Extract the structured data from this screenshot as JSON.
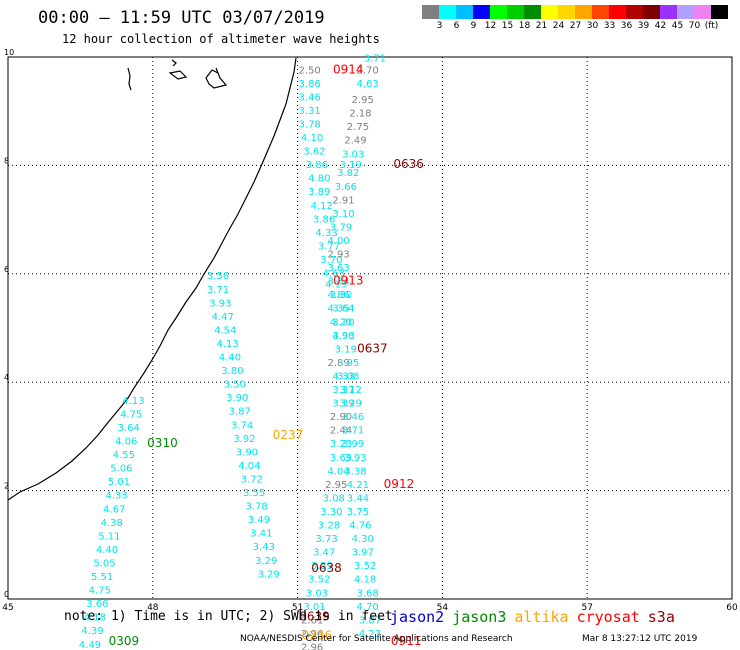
{
  "header": {
    "title": "00:00 – 11:59 UTC 03/07/2019",
    "subtitle": "12 hour collection of altimeter wave heights"
  },
  "legend": {
    "colors": [
      "#7f7f7f",
      "#00ffff",
      "#00bfff",
      "#0000ff",
      "#00ff00",
      "#00cd00",
      "#008b00",
      "#ffff00",
      "#ffd700",
      "#ffa500",
      "#ff4500",
      "#ff0000",
      "#b20000",
      "#800000",
      "#9b30ff",
      "#b0a0ff",
      "#ee82ee",
      "#000000"
    ],
    "labels": [
      "3",
      "6",
      "9",
      "12",
      "15",
      "18",
      "21",
      "24",
      "27",
      "30",
      "33",
      "36",
      "39",
      "42",
      "45",
      "70",
      "(ft)"
    ]
  },
  "axes": {
    "x_ticks": [
      "45",
      "48",
      "51",
      "54",
      "57",
      "60"
    ],
    "y_ticks": [
      "0",
      "2",
      "4",
      "6",
      "8",
      "10"
    ]
  },
  "map_data": {
    "lon_range": [
      45,
      60
    ],
    "lat_range": [
      0,
      10
    ],
    "swh_labels": [
      {
        "lon": 52.6,
        "lat": 9.92,
        "v": "3.71",
        "c": "cyan"
      },
      {
        "lon": 51.25,
        "lat": 9.7,
        "v": "2.50",
        "c": "gray"
      },
      {
        "lon": 52.45,
        "lat": 9.7,
        "v": "2.70",
        "c": "gray"
      },
      {
        "lon": 51.25,
        "lat": 9.45,
        "v": "3.86",
        "c": "cyan"
      },
      {
        "lon": 52.45,
        "lat": 9.45,
        "v": "4.63",
        "c": "cyan"
      },
      {
        "lon": 51.25,
        "lat": 9.2,
        "v": "3.46",
        "c": "cyan"
      },
      {
        "lon": 52.35,
        "lat": 9.15,
        "v": "2.95",
        "c": "gray"
      },
      {
        "lon": 51.25,
        "lat": 8.95,
        "v": "3.31",
        "c": "cyan"
      },
      {
        "lon": 52.3,
        "lat": 8.9,
        "v": "2.18",
        "c": "gray"
      },
      {
        "lon": 51.25,
        "lat": 8.7,
        "v": "3.78",
        "c": "cyan"
      },
      {
        "lon": 52.25,
        "lat": 8.65,
        "v": "2.75",
        "c": "gray"
      },
      {
        "lon": 51.3,
        "lat": 8.45,
        "v": "4.10",
        "c": "cyan"
      },
      {
        "lon": 52.2,
        "lat": 8.4,
        "v": "2.49",
        "c": "gray"
      },
      {
        "lon": 51.35,
        "lat": 8.2,
        "v": "3.62",
        "c": "cyan"
      },
      {
        "lon": 52.15,
        "lat": 8.15,
        "v": "3.03",
        "c": "cyan"
      },
      {
        "lon": 51.4,
        "lat": 7.95,
        "v": "3.86",
        "c": "cyan"
      },
      {
        "lon": 52.1,
        "lat": 7.95,
        "v": "3.19",
        "c": "cyan"
      },
      {
        "lon": 51.45,
        "lat": 7.7,
        "v": "4.80",
        "c": "cyan"
      },
      {
        "lon": 52.05,
        "lat": 7.8,
        "v": "3.82",
        "c": "cyan"
      },
      {
        "lon": 51.45,
        "lat": 7.45,
        "v": "3.89",
        "c": "cyan"
      },
      {
        "lon": 52.0,
        "lat": 7.55,
        "v": "3.66",
        "c": "cyan"
      },
      {
        "lon": 51.5,
        "lat": 7.2,
        "v": "4.12",
        "c": "cyan"
      },
      {
        "lon": 51.95,
        "lat": 7.3,
        "v": "2.91",
        "c": "gray"
      },
      {
        "lon": 51.55,
        "lat": 6.95,
        "v": "3.86",
        "c": "cyan"
      },
      {
        "lon": 51.95,
        "lat": 7.05,
        "v": "3.10",
        "c": "cyan"
      },
      {
        "lon": 51.6,
        "lat": 6.7,
        "v": "4.33",
        "c": "cyan"
      },
      {
        "lon": 51.9,
        "lat": 6.8,
        "v": "3.79",
        "c": "cyan"
      },
      {
        "lon": 51.65,
        "lat": 6.45,
        "v": "3.77",
        "c": "cyan"
      },
      {
        "lon": 51.85,
        "lat": 6.55,
        "v": "4.00",
        "c": "cyan"
      },
      {
        "lon": 51.7,
        "lat": 6.2,
        "v": "3.70",
        "c": "cyan"
      },
      {
        "lon": 51.85,
        "lat": 6.3,
        "v": "2.93",
        "c": "gray"
      },
      {
        "lon": 51.75,
        "lat": 5.95,
        "v": "4.63",
        "c": "cyan"
      },
      {
        "lon": 51.85,
        "lat": 6.05,
        "v": "3.63",
        "c": "cyan"
      },
      {
        "lon": 51.8,
        "lat": 5.75,
        "v": "4.13",
        "c": "cyan"
      },
      {
        "lon": 51.85,
        "lat": 5.8,
        "v": "3.34",
        "c": "cyan"
      },
      {
        "lon": 51.85,
        "lat": 5.55,
        "v": "4.86",
        "c": "cyan"
      },
      {
        "lon": 51.9,
        "lat": 5.55,
        "v": "3.30",
        "c": "cyan"
      },
      {
        "lon": 51.85,
        "lat": 5.3,
        "v": "4.35",
        "c": "cyan"
      },
      {
        "lon": 51.95,
        "lat": 5.3,
        "v": "3.64",
        "c": "cyan"
      },
      {
        "lon": 51.9,
        "lat": 5.05,
        "v": "4.20",
        "c": "cyan"
      },
      {
        "lon": 51.95,
        "lat": 5.05,
        "v": "3.20",
        "c": "cyan"
      },
      {
        "lon": 51.95,
        "lat": 4.8,
        "v": "4.96",
        "c": "cyan"
      },
      {
        "lon": 51.95,
        "lat": 4.8,
        "v": "3.90",
        "c": "cyan"
      },
      {
        "lon": 52.0,
        "lat": 4.55,
        "v": "3.19",
        "c": "cyan"
      },
      {
        "lon": 51.85,
        "lat": 4.3,
        "v": "2.89",
        "c": "gray"
      },
      {
        "lon": 52.05,
        "lat": 4.3,
        "v": "3.95",
        "c": "cyan"
      },
      {
        "lon": 51.95,
        "lat": 4.05,
        "v": "4.33",
        "c": "cyan"
      },
      {
        "lon": 52.05,
        "lat": 4.05,
        "v": "3.08",
        "c": "cyan"
      },
      {
        "lon": 51.95,
        "lat": 3.8,
        "v": "3.37",
        "c": "cyan"
      },
      {
        "lon": 52.1,
        "lat": 3.8,
        "v": "3.12",
        "c": "cyan"
      },
      {
        "lon": 51.95,
        "lat": 3.55,
        "v": "3.39",
        "c": "cyan"
      },
      {
        "lon": 52.1,
        "lat": 3.55,
        "v": "3.29",
        "c": "cyan"
      },
      {
        "lon": 51.9,
        "lat": 3.3,
        "v": "2.90",
        "c": "gray"
      },
      {
        "lon": 52.15,
        "lat": 3.3,
        "v": "3.46",
        "c": "cyan"
      },
      {
        "lon": 51.9,
        "lat": 3.05,
        "v": "2.44",
        "c": "gray"
      },
      {
        "lon": 52.15,
        "lat": 3.05,
        "v": "3.71",
        "c": "cyan"
      },
      {
        "lon": 51.9,
        "lat": 2.8,
        "v": "3.23",
        "c": "cyan"
      },
      {
        "lon": 52.15,
        "lat": 2.8,
        "v": "3.99",
        "c": "cyan"
      },
      {
        "lon": 51.9,
        "lat": 2.55,
        "v": "3.69",
        "c": "cyan"
      },
      {
        "lon": 52.2,
        "lat": 2.55,
        "v": "3.93",
        "c": "cyan"
      },
      {
        "lon": 51.85,
        "lat": 2.3,
        "v": "4.04",
        "c": "cyan"
      },
      {
        "lon": 52.2,
        "lat": 2.3,
        "v": "3.38",
        "c": "cyan"
      },
      {
        "lon": 51.8,
        "lat": 2.05,
        "v": "2.95",
        "c": "gray"
      },
      {
        "lon": 52.25,
        "lat": 2.05,
        "v": "4.21",
        "c": "cyan"
      },
      {
        "lon": 51.75,
        "lat": 1.8,
        "v": "3.08",
        "c": "cyan"
      },
      {
        "lon": 52.25,
        "lat": 1.8,
        "v": "3.44",
        "c": "cyan"
      },
      {
        "lon": 51.7,
        "lat": 1.55,
        "v": "3.30",
        "c": "cyan"
      },
      {
        "lon": 52.25,
        "lat": 1.55,
        "v": "3.75",
        "c": "cyan"
      },
      {
        "lon": 51.65,
        "lat": 1.3,
        "v": "3.28",
        "c": "cyan"
      },
      {
        "lon": 52.3,
        "lat": 1.3,
        "v": "4.76",
        "c": "cyan"
      },
      {
        "lon": 51.6,
        "lat": 1.05,
        "v": "3.73",
        "c": "cyan"
      },
      {
        "lon": 52.35,
        "lat": 1.05,
        "v": "4.30",
        "c": "cyan"
      },
      {
        "lon": 51.55,
        "lat": 0.8,
        "v": "3.47",
        "c": "cyan"
      },
      {
        "lon": 52.35,
        "lat": 0.8,
        "v": "3.97",
        "c": "cyan"
      },
      {
        "lon": 51.5,
        "lat": 0.55,
        "v": "3.39",
        "c": "cyan"
      },
      {
        "lon": 52.4,
        "lat": 0.55,
        "v": "3.52",
        "c": "cyan"
      },
      {
        "lon": 51.45,
        "lat": 0.3,
        "v": "3.52",
        "c": "cyan"
      },
      {
        "lon": 52.4,
        "lat": 0.3,
        "v": "4.18",
        "c": "cyan"
      },
      {
        "lon": 51.4,
        "lat": 0.05,
        "v": "3.03",
        "c": "cyan"
      },
      {
        "lon": 52.45,
        "lat": 0.05,
        "v": "3.68",
        "c": "cyan"
      },
      {
        "lon": 51.35,
        "lat": -0.2,
        "v": "3.01",
        "c": "cyan"
      },
      {
        "lon": 52.45,
        "lat": -0.2,
        "v": "4.70",
        "c": "cyan"
      },
      {
        "lon": 51.3,
        "lat": -0.45,
        "v": "2.61",
        "c": "gray"
      },
      {
        "lon": 52.5,
        "lat": -0.45,
        "v": "3.87",
        "c": "cyan"
      },
      {
        "lon": 51.3,
        "lat": -0.7,
        "v": "2.96",
        "c": "gray"
      },
      {
        "lon": 52.5,
        "lat": -0.7,
        "v": "4.23",
        "c": "cyan"
      },
      {
        "lon": 51.3,
        "lat": -0.95,
        "v": "2.96",
        "c": "gray"
      },
      {
        "lon": 49.35,
        "lat": 5.9,
        "v": "3.56",
        "c": "cyan"
      },
      {
        "lon": 49.35,
        "lat": 5.65,
        "v": "3.71",
        "c": "cyan"
      },
      {
        "lon": 49.4,
        "lat": 5.4,
        "v": "3.93",
        "c": "cyan"
      },
      {
        "lon": 49.45,
        "lat": 5.15,
        "v": "4.47",
        "c": "cyan"
      },
      {
        "lon": 49.5,
        "lat": 4.9,
        "v": "4.54",
        "c": "cyan"
      },
      {
        "lon": 49.55,
        "lat": 4.65,
        "v": "4.13",
        "c": "cyan"
      },
      {
        "lon": 49.6,
        "lat": 4.4,
        "v": "4.40",
        "c": "cyan"
      },
      {
        "lon": 49.65,
        "lat": 4.15,
        "v": "3.80",
        "c": "cyan"
      },
      {
        "lon": 49.7,
        "lat": 3.9,
        "v": "3.50",
        "c": "cyan"
      },
      {
        "lon": 49.75,
        "lat": 3.65,
        "v": "3.90",
        "c": "cyan"
      },
      {
        "lon": 49.8,
        "lat": 3.4,
        "v": "3.87",
        "c": "cyan"
      },
      {
        "lon": 49.85,
        "lat": 3.15,
        "v": "3.74",
        "c": "cyan"
      },
      {
        "lon": 49.9,
        "lat": 2.9,
        "v": "3.92",
        "c": "cyan"
      },
      {
        "lon": 49.95,
        "lat": 2.65,
        "v": "3.90",
        "c": "cyan"
      },
      {
        "lon": 50.0,
        "lat": 2.4,
        "v": "4.04",
        "c": "cyan"
      },
      {
        "lon": 50.05,
        "lat": 2.15,
        "v": "3.72",
        "c": "cyan"
      },
      {
        "lon": 50.1,
        "lat": 1.9,
        "v": "3.55",
        "c": "cyan"
      },
      {
        "lon": 50.15,
        "lat": 1.65,
        "v": "3.78",
        "c": "cyan"
      },
      {
        "lon": 50.2,
        "lat": 1.4,
        "v": "3.49",
        "c": "cyan"
      },
      {
        "lon": 50.25,
        "lat": 1.15,
        "v": "3.41",
        "c": "cyan"
      },
      {
        "lon": 50.3,
        "lat": 0.9,
        "v": "3.43",
        "c": "cyan"
      },
      {
        "lon": 50.35,
        "lat": 0.65,
        "v": "3.29",
        "c": "cyan"
      },
      {
        "lon": 50.4,
        "lat": 0.4,
        "v": "3.29",
        "c": "cyan"
      },
      {
        "lon": 47.6,
        "lat": 3.6,
        "v": "4.13",
        "c": "cyan"
      },
      {
        "lon": 47.55,
        "lat": 3.35,
        "v": "4.75",
        "c": "cyan"
      },
      {
        "lon": 47.5,
        "lat": 3.1,
        "v": "3.64",
        "c": "cyan"
      },
      {
        "lon": 47.45,
        "lat": 2.85,
        "v": "4.06",
        "c": "cyan"
      },
      {
        "lon": 47.4,
        "lat": 2.6,
        "v": "4.55",
        "c": "cyan"
      },
      {
        "lon": 47.35,
        "lat": 2.35,
        "v": "5.06",
        "c": "cyan"
      },
      {
        "lon": 47.3,
        "lat": 2.1,
        "v": "5.01",
        "c": "cyan"
      },
      {
        "lon": 47.25,
        "lat": 1.85,
        "v": "4.33",
        "c": "cyan"
      },
      {
        "lon": 47.2,
        "lat": 1.6,
        "v": "4.67",
        "c": "cyan"
      },
      {
        "lon": 47.15,
        "lat": 1.35,
        "v": "4.38",
        "c": "cyan"
      },
      {
        "lon": 47.1,
        "lat": 1.1,
        "v": "5.11",
        "c": "cyan"
      },
      {
        "lon": 47.05,
        "lat": 0.85,
        "v": "4.40",
        "c": "cyan"
      },
      {
        "lon": 47.0,
        "lat": 0.6,
        "v": "5.05",
        "c": "cyan"
      },
      {
        "lon": 46.95,
        "lat": 0.35,
        "v": "5.51",
        "c": "cyan"
      },
      {
        "lon": 46.9,
        "lat": 0.1,
        "v": "4.75",
        "c": "cyan"
      },
      {
        "lon": 46.85,
        "lat": -0.15,
        "v": "3.66",
        "c": "cyan"
      },
      {
        "lon": 46.8,
        "lat": -0.4,
        "v": "4.18",
        "c": "cyan"
      },
      {
        "lon": 46.75,
        "lat": -0.65,
        "v": "4.39",
        "c": "cyan"
      },
      {
        "lon": 46.7,
        "lat": -0.9,
        "v": "4.49",
        "c": "cyan"
      }
    ],
    "pass_times": [
      {
        "lon": 52.05,
        "lat": 9.7,
        "t": "0914",
        "sat": "cryosat"
      },
      {
        "lon": 53.3,
        "lat": 7.95,
        "t": "0636",
        "sat": "s3a"
      },
      {
        "lon": 52.05,
        "lat": 5.8,
        "t": "0913",
        "sat": "cryosat"
      },
      {
        "lon": 52.55,
        "lat": 4.55,
        "t": "0637",
        "sat": "s3a"
      },
      {
        "lon": 48.2,
        "lat": 2.8,
        "t": "0310",
        "sat": "jason3"
      },
      {
        "lon": 50.8,
        "lat": 2.95,
        "t": "0237",
        "sat": "altika"
      },
      {
        "lon": 53.1,
        "lat": 2.05,
        "t": "0912",
        "sat": "cryosat"
      },
      {
        "lon": 51.6,
        "lat": 0.5,
        "t": "0638",
        "sat": "s3a"
      },
      {
        "lon": 51.35,
        "lat": -0.4,
        "t": "0639",
        "sat": "s3a"
      },
      {
        "lon": 51.4,
        "lat": -0.75,
        "t": "0236",
        "sat": "altika"
      },
      {
        "lon": 53.25,
        "lat": -0.85,
        "t": "0911",
        "sat": "cryosat"
      },
      {
        "lon": 47.4,
        "lat": -0.85,
        "t": "0309",
        "sat": "jason3"
      }
    ],
    "sat_colors": {
      "jason2": "#0000cd",
      "jason3": "#008b00",
      "altika": "#ffa500",
      "cryosat": "#ff0000",
      "s3a": "#8b0000"
    },
    "value_colors": {
      "cyan": "#00e5ee",
      "gray": "#7f7f7f"
    }
  },
  "footer": {
    "note": "note: 1) Time is in UTC; 2) SWH is in feet",
    "sats": [
      {
        "key": "jason2",
        "label": "jason2",
        "color": "#0000cd"
      },
      {
        "key": "jason3",
        "label": "jason3",
        "color": "#008b00"
      },
      {
        "key": "altika",
        "label": "altika",
        "color": "#ffa500"
      },
      {
        "key": "cryosat",
        "label": "cryosat",
        "color": "#ff0000"
      },
      {
        "key": "s3a",
        "label": "s3a",
        "color": "#8b0000"
      }
    ],
    "credit": "NOAA/NESDIS Center for Satellite Applications and Research",
    "timestamp": "Mar  8 13:27:12 UTC 2019"
  }
}
